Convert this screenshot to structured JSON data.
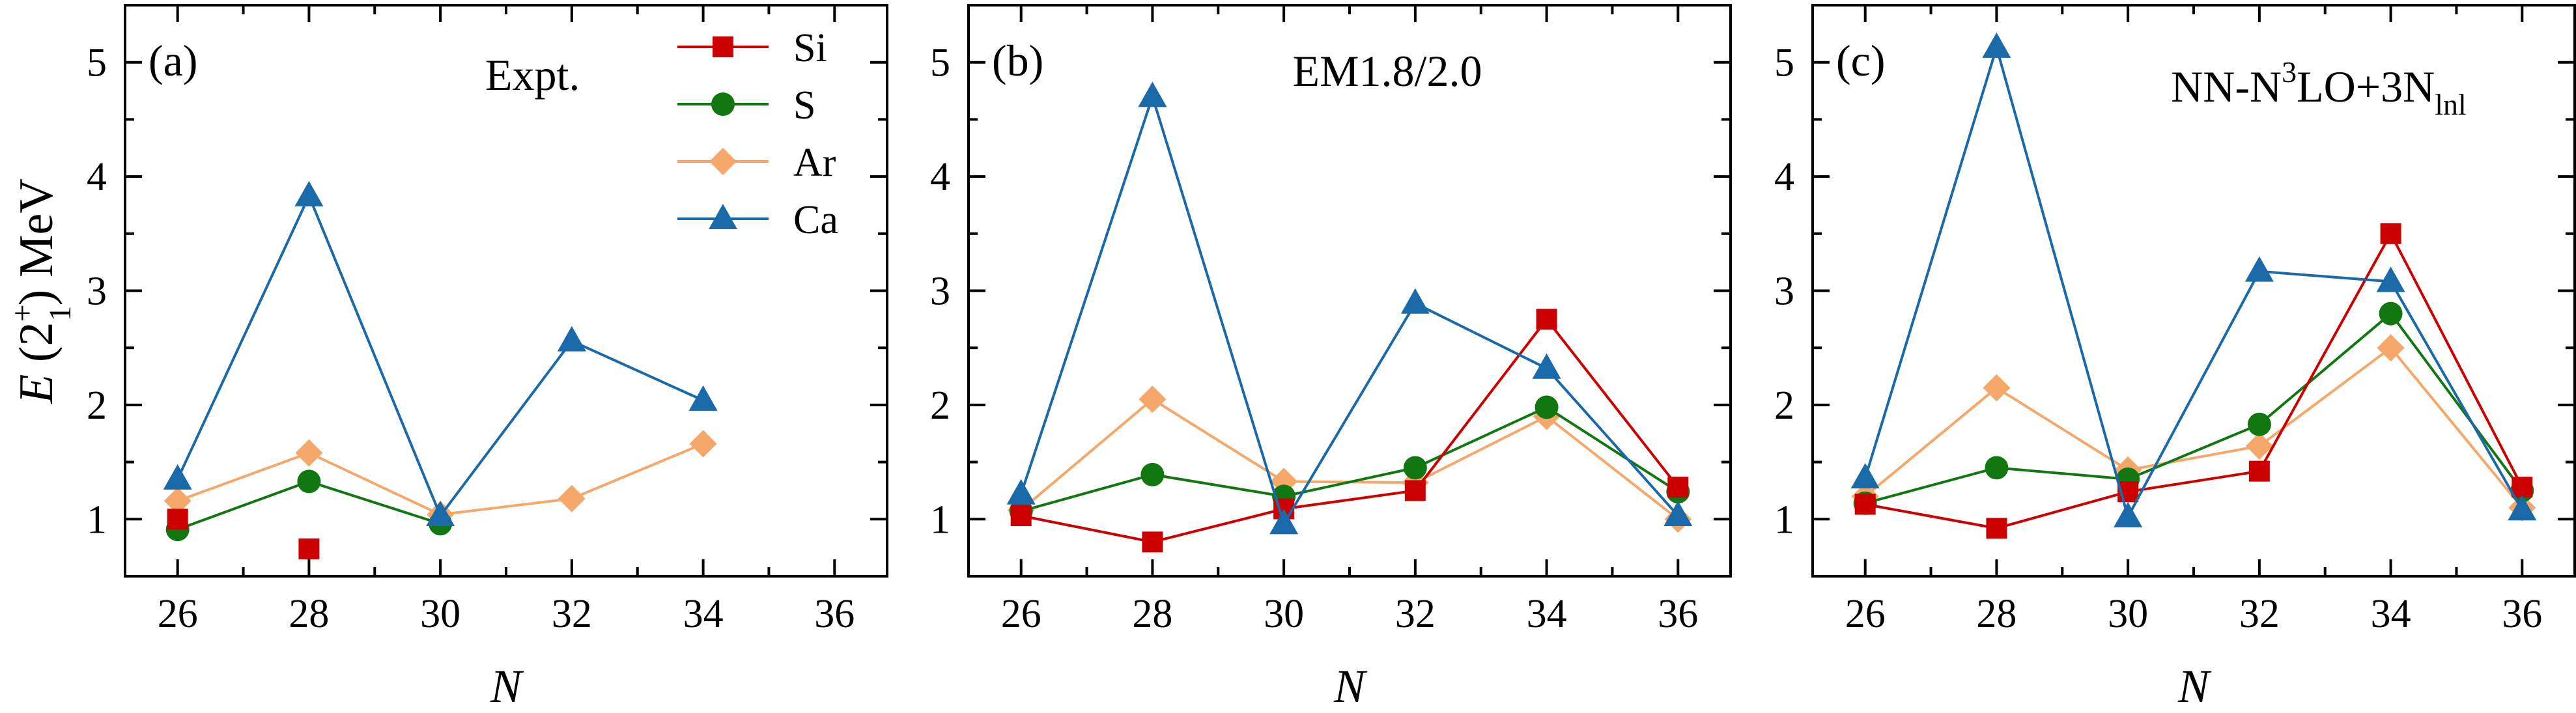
{
  "figure": {
    "ylabel": {
      "prefix": "E",
      "open": " (2",
      "sup": "+",
      "sub": "1",
      "close": ") MeV"
    },
    "xlabel": "N"
  },
  "colors": {
    "Si": "#cc0000",
    "S": "#117711",
    "Ar": "#f5a86a",
    "Ca": "#1a6aaa"
  },
  "chart_data": [
    {
      "type": "line",
      "panel_label": "(a)",
      "title": "Expt.",
      "xlabel": "N",
      "ylabel": "E (2+1) MeV",
      "xlim": [
        25.2,
        36.8
      ],
      "ylim": [
        0.5,
        5.5
      ],
      "xticks": [
        26,
        28,
        30,
        32,
        34,
        36
      ],
      "yticks": [
        1,
        2,
        3,
        4,
        5
      ],
      "legend": "top-center",
      "series": [
        {
          "name": "Si",
          "marker": "square",
          "x": [
            26,
            28
          ],
          "y": [
            1.0,
            0.74
          ],
          "segments": [
            [
              26,
              26
            ]
          ]
        },
        {
          "name": "S",
          "marker": "circle",
          "x": [
            26,
            28,
            30
          ],
          "y": [
            0.91,
            1.33,
            0.96
          ]
        },
        {
          "name": "Ar",
          "marker": "diamond",
          "x": [
            26,
            28,
            30,
            32,
            34
          ],
          "y": [
            1.16,
            1.58,
            1.04,
            1.18,
            1.66
          ]
        },
        {
          "name": "Ca",
          "marker": "triangle",
          "x": [
            26,
            28,
            30,
            32,
            34
          ],
          "y": [
            1.35,
            3.83,
            1.03,
            2.56,
            2.04
          ]
        }
      ]
    },
    {
      "type": "line",
      "panel_label": "(b)",
      "title": "EM1.8/2.0",
      "xlabel": "N",
      "ylabel": "",
      "xlim": [
        25.2,
        36.8
      ],
      "ylim": [
        0.5,
        5.5
      ],
      "xticks": [
        26,
        28,
        30,
        32,
        34,
        36
      ],
      "yticks": [
        1,
        2,
        3,
        4,
        5
      ],
      "series": [
        {
          "name": "Si",
          "marker": "square",
          "x": [
            26,
            28,
            30,
            32,
            34,
            36
          ],
          "y": [
            1.03,
            0.8,
            1.09,
            1.25,
            2.75,
            1.28
          ]
        },
        {
          "name": "S",
          "marker": "circle",
          "x": [
            26,
            28,
            30,
            32,
            34,
            36
          ],
          "y": [
            1.07,
            1.39,
            1.2,
            1.45,
            1.98,
            1.24
          ]
        },
        {
          "name": "Ar",
          "marker": "diamond",
          "x": [
            26,
            28,
            30,
            32,
            34,
            36
          ],
          "y": [
            1.08,
            2.05,
            1.33,
            1.32,
            1.9,
            1.0
          ]
        },
        {
          "name": "Ca",
          "marker": "triangle",
          "x": [
            26,
            28,
            30,
            32,
            34,
            36
          ],
          "y": [
            1.22,
            4.7,
            0.96,
            2.89,
            2.32,
            1.03
          ]
        }
      ]
    },
    {
      "type": "line",
      "panel_label": "(c)",
      "title_parts": [
        "NN-N",
        "3",
        "LO+3N",
        "lnl"
      ],
      "xlabel": "N",
      "ylabel": "",
      "xlim": [
        25.2,
        36.8
      ],
      "ylim": [
        0.5,
        5.5
      ],
      "xticks": [
        26,
        28,
        30,
        32,
        34,
        36
      ],
      "yticks": [
        1,
        2,
        3,
        4,
        5
      ],
      "series": [
        {
          "name": "Si",
          "marker": "square",
          "x": [
            26,
            28,
            30,
            32,
            34,
            36
          ],
          "y": [
            1.13,
            0.92,
            1.24,
            1.42,
            3.5,
            1.28
          ]
        },
        {
          "name": "S",
          "marker": "circle",
          "x": [
            26,
            28,
            30,
            32,
            34,
            36
          ],
          "y": [
            1.14,
            1.45,
            1.35,
            1.83,
            2.8,
            1.25
          ]
        },
        {
          "name": "Ar",
          "marker": "diamond",
          "x": [
            26,
            28,
            30,
            32,
            34,
            36
          ],
          "y": [
            1.2,
            2.15,
            1.43,
            1.64,
            2.5,
            1.1
          ]
        },
        {
          "name": "Ca",
          "marker": "triangle",
          "x": [
            26,
            28,
            30,
            32,
            34,
            36
          ],
          "y": [
            1.36,
            5.13,
            1.02,
            3.17,
            3.08,
            1.08
          ]
        }
      ]
    }
  ]
}
